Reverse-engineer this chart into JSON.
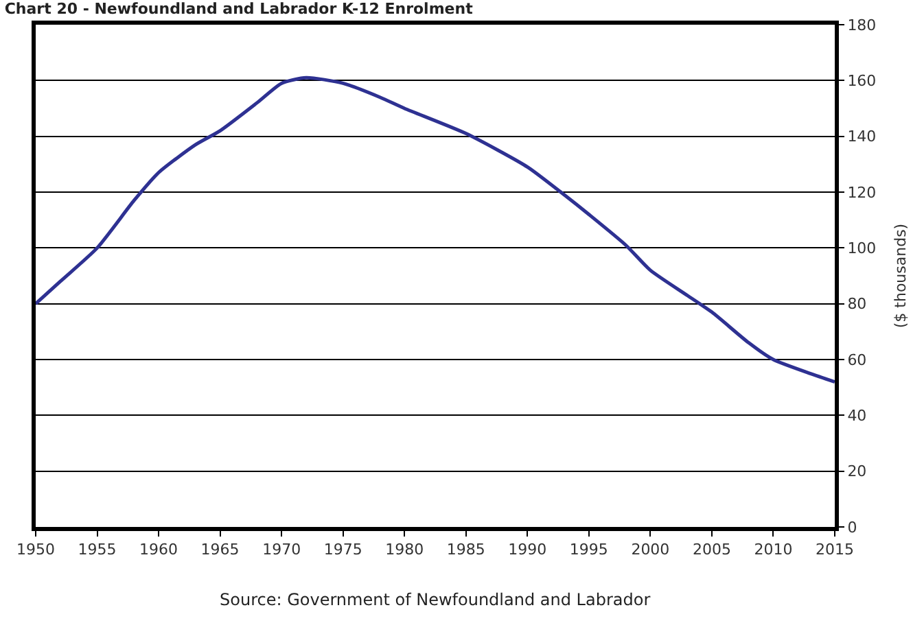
{
  "chart_data": {
    "type": "line",
    "title": "Chart 20 - Newfoundland and Labrador K-12 Enrolment",
    "ylabel": "($ thousands)",
    "x": [
      1950,
      1952,
      1955,
      1958,
      1960,
      1963,
      1965,
      1968,
      1970,
      1972,
      1975,
      1978,
      1980,
      1985,
      1990,
      1993,
      1995,
      1998,
      2000,
      2003,
      2005,
      2008,
      2010,
      2013,
      2015
    ],
    "series": [
      {
        "color": "#2e3192",
        "values": [
          80,
          88,
          100,
          117,
          127,
          137,
          142,
          152,
          159,
          161,
          159,
          154,
          150,
          141,
          129,
          119,
          112,
          101,
          92,
          83,
          77,
          66,
          60,
          55,
          52
        ]
      }
    ],
    "xlim": [
      1950,
      2015
    ],
    "xticks": [
      1950,
      1955,
      1960,
      1965,
      1970,
      1975,
      1980,
      1985,
      1990,
      1995,
      2000,
      2005,
      2010,
      2015
    ],
    "ylim": [
      0,
      180
    ],
    "yticks": [
      0,
      20,
      40,
      60,
      80,
      100,
      120,
      140,
      160,
      180
    ],
    "grid": "y",
    "marker": "none",
    "line_style": "solid",
    "annotations": [
      "Source: Government of Newfoundland and Labrador"
    ]
  }
}
